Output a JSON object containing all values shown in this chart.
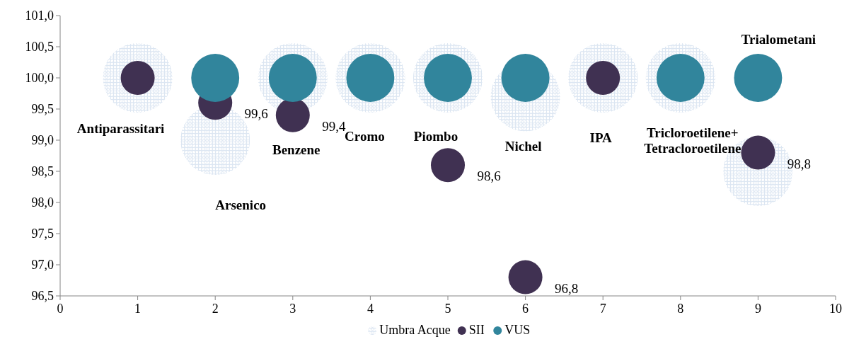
{
  "chart_data": {
    "type": "bubble",
    "xlim": [
      0,
      10
    ],
    "xticks": [
      0,
      1,
      2,
      3,
      4,
      5,
      6,
      7,
      8,
      9,
      10
    ],
    "ylim": [
      96.5,
      101
    ],
    "yticks": [
      {
        "value": 96.5,
        "label": "96,5"
      },
      {
        "value": 97,
        "label": "97,0"
      },
      {
        "value": 97.5,
        "label": "97,5"
      },
      {
        "value": 98,
        "label": "98,0"
      },
      {
        "value": 98.5,
        "label": "98,5"
      },
      {
        "value": 99,
        "label": "99,0"
      },
      {
        "value": 99.5,
        "label": "99,5"
      },
      {
        "value": 100,
        "label": "100,0"
      },
      {
        "value": 100.5,
        "label": "100,5"
      },
      {
        "value": 101,
        "label": "101,0"
      }
    ],
    "grid": false,
    "legend": "bottom",
    "series": [
      {
        "name": "Umbra Acque",
        "color": "#dce6f2",
        "x": [
          1,
          2,
          3,
          4,
          5,
          6,
          7,
          8,
          9
        ],
        "values": [
          100,
          99.0,
          100,
          100,
          100,
          99.7,
          100,
          100,
          98.5
        ],
        "sizes": [
          1,
          1,
          1,
          1,
          1,
          1,
          1,
          1,
          1
        ]
      },
      {
        "name": "SII",
        "color": "#403152",
        "x": [
          1,
          2,
          3,
          5,
          6,
          7,
          9
        ],
        "values": [
          100,
          99.6,
          99.4,
          98.6,
          96.8,
          100,
          98.8
        ],
        "sizes": [
          0.24,
          0.24,
          0.24,
          0.24,
          0.24,
          0.24,
          0.24
        ],
        "value_labels": [
          null,
          "99,6",
          "99,4",
          "98,6",
          "96,8",
          null,
          "98,8"
        ]
      },
      {
        "name": "VUS",
        "color": "#31859c",
        "x": [
          2,
          3,
          4,
          5,
          6,
          8,
          9
        ],
        "values": [
          100,
          100,
          100,
          100,
          100,
          100,
          100
        ],
        "sizes": [
          0.48,
          0.48,
          0.48,
          0.48,
          0.48,
          0.48,
          0.48
        ]
      }
    ],
    "annotations": [
      "Antiparassitari",
      "Arsenico",
      "Benzene",
      "Cromo",
      "Piombo",
      "Nichel",
      "IPA",
      "Tricloroetilene+\nTetracloroetilene",
      "Trialometani"
    ]
  }
}
